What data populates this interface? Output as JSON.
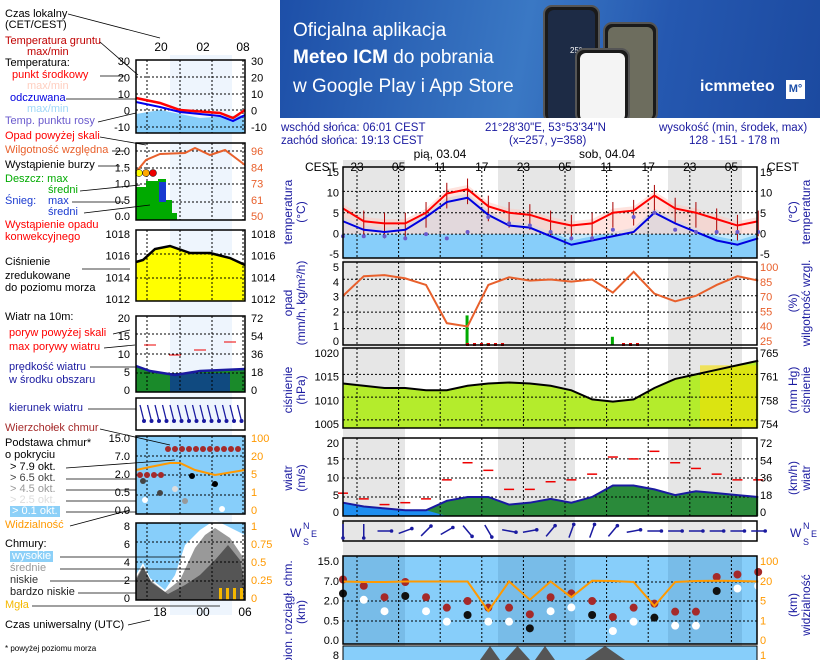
{
  "banner": {
    "line1": "Oficjalna aplikacja",
    "line2_bold": "Meteo ICM",
    "line2_rest": " do pobrania",
    "line3": "w Google Play i App Store",
    "logo": "icmmeteo",
    "logo_badge": "M°",
    "phone_temp": "25°"
  },
  "info": {
    "sunrise": "wschód słońca: 06:01 CEST",
    "sunset": "zachód słońca: 19:13 CEST",
    "coords": "21°28'30\"E, 53°53'34\"N",
    "grid": "(x=257,  y=358)",
    "elev_label": "wysokość (min, środek, max)",
    "elev_value": "128 - 151 - 178 m"
  },
  "legend": {
    "local_time": "Czas lokalny",
    "local_time_zone": "(CET/CEST)",
    "ground_temp": "Temperatura gruntu",
    "ground_temp_mm": "max/min",
    "temperature": "Temperatura:",
    "mid_point": "punkt środkowy",
    "mid_mm": "max/min",
    "perceived": "odczuwana",
    "perceived_mm": "max/min",
    "dew_point": "Temp. punktu rosy",
    "precip_above": "Opad powyżej skali",
    "humidity": "Wilgotność względna",
    "storm": "Wystąpienie burzy",
    "rain": "Deszcz: max",
    "rain_avg": "średni",
    "snow": "Śnieg:",
    "snow_max": "max",
    "snow_avg": "średni",
    "convective_1": "Wystąpienie opadu",
    "convective_2": "konwekcyjnego",
    "pressure_1": "Ciśnienie",
    "pressure_2": "zredukowane",
    "pressure_3": "do poziomu morza",
    "wind": "Wiatr na 10m:",
    "gust_above": "poryw powyżej skali",
    "gust_max": "max porywy wiatru",
    "wind_speed_1": "prędkość wiatru",
    "wind_speed_2": "w środku obszaru",
    "wind_dir": "kierunek wiatru",
    "cloud_top": "Wierzchołek chmur",
    "cloud_base_1": "Podstawa chmur*",
    "cloud_base_2": "o pokryciu",
    "okt79": "> 7.9 okt.",
    "okt65": "> 6.5 okt.",
    "okt45": "> 4.5 okt.",
    "okt25": "> 2.5 okt.",
    "okt01": "> 0.1 okt.",
    "visibility": "Widzialność",
    "clouds": "Chmury:",
    "high": "wysokie",
    "mid": "średnie",
    "low": "niskie",
    "very_low": "bardzo niskie",
    "fog": "Mgła",
    "utc": "Czas uniwersalny (UTC)",
    "footnote": "* powyżej poziomu morza",
    "top_times": [
      "20",
      "02",
      "08"
    ],
    "bottom_times": [
      "18",
      "00",
      "06"
    ],
    "ticks": {
      "temp": [
        "30",
        "20",
        "10",
        "0",
        "-10"
      ],
      "precip": [
        "2.0",
        "1.5",
        "1.0",
        "0.5",
        "0.0"
      ],
      "humidity": [
        "96",
        "84",
        "73",
        "61",
        "50"
      ],
      "pressure": [
        "1018",
        "1016",
        "1014",
        "1012"
      ],
      "wind": [
        "20",
        "15",
        "10",
        "5",
        "0"
      ],
      "wind_kmh": [
        "72",
        "54",
        "36",
        "18",
        "0"
      ],
      "cloud": [
        "15.0",
        "7.0",
        "2.0",
        "0.5",
        "0.0"
      ],
      "vis": [
        "100",
        "20",
        "5",
        "1",
        "0"
      ],
      "clouds": [
        "8",
        "6",
        "4",
        "2",
        "0"
      ],
      "fog": [
        "1",
        "0.75",
        "0.5",
        "0.25",
        "0"
      ]
    }
  },
  "main": {
    "tz": "CEST",
    "hours": [
      "23",
      "05",
      "11",
      "17",
      "23",
      "05",
      "11",
      "17",
      "23",
      "05"
    ],
    "days": [
      "pią, 03.04",
      "sob, 04.04"
    ],
    "axis_titles": {
      "temp_l": [
        "temperatura",
        "(°C)"
      ],
      "temp_r": [
        "(°C)",
        "temperatura"
      ],
      "precip_l": [
        "opad",
        "(mm/h, kg/m²/h)"
      ],
      "precip_r": [
        "(%)",
        "wilgotność wzgl."
      ],
      "press_l": [
        "ciśnienie",
        "(hPa)"
      ],
      "press_r": [
        "(mm Hg)",
        "ciśnienie"
      ],
      "wind_l": [
        "wiatr",
        "(m/s)"
      ],
      "wind_r": [
        "(km/h)",
        "wiatr"
      ],
      "cloud_l": [
        "pion. rozciągł. chm.",
        "(km)"
      ],
      "cloud_r": [
        "(km)",
        "widzialność"
      ]
    },
    "compass": {
      "n": "N",
      "w": "W",
      "s": "S",
      "e": "E"
    },
    "ticks": {
      "temp": [
        "15",
        "10",
        "5",
        "0",
        "-5"
      ],
      "precip": [
        "5",
        "4",
        "3",
        "2",
        "1",
        "0"
      ],
      "humidity": [
        "100",
        "85",
        "70",
        "55",
        "40",
        "25"
      ],
      "pressure": [
        "1020",
        "1015",
        "1010",
        "1005"
      ],
      "pressure_mmhg": [
        "765",
        "761",
        "758",
        "754"
      ],
      "wind": [
        "20",
        "15",
        "10",
        "5",
        "0"
      ],
      "wind_kmh": [
        "72",
        "54",
        "36",
        "18",
        "0"
      ],
      "cloud": [
        "15.0",
        "7.0",
        "2.0",
        "0.5",
        "0.0"
      ],
      "vis": [
        "100",
        "20",
        "5",
        "1",
        "0"
      ],
      "clouds_top": "8",
      "fog_top": "1"
    }
  },
  "chart_data": {
    "type": "line",
    "x": [
      "02.04 21:00",
      "03.04 00:00",
      "03:00",
      "06:00",
      "09:00",
      "12:00",
      "15:00",
      "18:00",
      "21:00",
      "04.04 00:00",
      "03:00",
      "06:00",
      "09:00",
      "12:00",
      "15:00",
      "18:00",
      "21:00",
      "05.04 00:00",
      "03:00",
      "06:00",
      "09:00"
    ],
    "series": [
      {
        "key": "temp",
        "values": [
          6,
          3,
          2.5,
          2.5,
          5,
          9.5,
          10.5,
          6.5,
          5,
          4.5,
          3,
          2,
          2.5,
          5,
          5.5,
          9,
          6,
          5,
          3.5,
          2,
          3
        ]
      },
      {
        "key": "perceived",
        "values": [
          3,
          1,
          0.5,
          1,
          4,
          7.5,
          8.5,
          4.5,
          2,
          1.5,
          -0.5,
          -2.5,
          -1.5,
          -0.5,
          0.5,
          5,
          2.5,
          0.5,
          -1.5,
          -2.5,
          -1
        ]
      },
      {
        "key": "dew_point",
        "values": [
          -0.5,
          -0.5,
          -0.5,
          -1,
          0,
          -1,
          0.5,
          4,
          2.5,
          2,
          0.5,
          -1,
          -1,
          1,
          4,
          5,
          1,
          0.5,
          0.5,
          0.5,
          0.5
        ]
      },
      {
        "key": "humidity",
        "values": [
          70,
          88,
          89,
          86,
          80,
          45,
          42,
          80,
          87,
          84,
          85,
          83,
          85,
          73,
          92,
          72,
          65,
          70,
          80,
          88,
          84
        ]
      },
      {
        "key": "precip",
        "values": [
          0,
          0,
          0,
          0,
          0,
          0,
          1.8,
          0.1,
          0,
          0,
          0,
          0,
          0,
          0.5,
          0,
          0,
          0,
          0,
          0,
          0,
          0
        ]
      },
      {
        "key": "pressure",
        "values": [
          1013,
          1012.5,
          1012,
          1012,
          1011.5,
          1011.5,
          1012.5,
          1013,
          1013.2,
          1013,
          1012.5,
          1011.5,
          1009.5,
          1009,
          1009.5,
          1012,
          1014,
          1015,
          1016,
          1017,
          1018
        ]
      },
      {
        "key": "wind",
        "values": [
          3.5,
          2.5,
          2,
          1.5,
          1.5,
          4,
          5,
          5,
          3,
          3.5,
          4.5,
          3.5,
          5,
          8,
          8,
          7,
          5.5,
          6.5,
          6,
          5.5,
          5
        ]
      },
      {
        "key": "gusts",
        "values": [
          6,
          4.5,
          3,
          3.5,
          4.5,
          9.5,
          14,
          12,
          7,
          7,
          9,
          9.5,
          11,
          15.5,
          15,
          17,
          14,
          12.5,
          11,
          9.5,
          9.5
        ]
      },
      {
        "key": "wind_dir_deg",
        "values": [
          0,
          0,
          270,
          250,
          225,
          240,
          320,
          330,
          280,
          260,
          220,
          200,
          200,
          220,
          260,
          270,
          270,
          270,
          270,
          270,
          270
        ]
      },
      {
        "key": "visibility",
        "values": [
          22,
          20,
          20,
          22,
          22,
          22,
          22,
          3,
          22,
          6,
          22,
          8,
          25,
          24,
          20,
          4,
          20,
          24,
          25,
          24,
          22
        ]
      },
      {
        "key": "cloud_top",
        "values": [
          8,
          6,
          3,
          7,
          3,
          1.5,
          2,
          1.5,
          1.5,
          1,
          3,
          4,
          2,
          0.8,
          1.5,
          1.8,
          1.2,
          1.2,
          9,
          10,
          11
        ]
      }
    ],
    "ylim": {
      "temp": [
        -5,
        15
      ],
      "precip": [
        0,
        5
      ],
      "humidity": [
        25,
        100
      ],
      "pressure": [
        1003,
        1020
      ],
      "wind": [
        0,
        20
      ]
    }
  },
  "colors": {
    "temp": "#ff0000",
    "perceived": "#0000e0",
    "dew": "#6a5acd",
    "humidity": "#e8602c",
    "night": "#e6e6e6",
    "sky": "#87cefa",
    "visibility": "#ff9900",
    "navy": "#1a1aa0"
  }
}
